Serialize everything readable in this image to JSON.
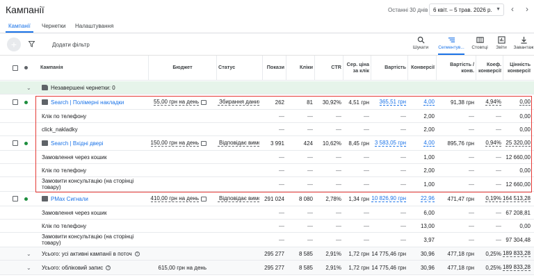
{
  "page_title": "Кампанії",
  "date_range": {
    "label": "Останні 30 днів",
    "value": "6 квіт. – 5 трав. 2026 р."
  },
  "tabs": [
    "Кампанії",
    "Чернетки",
    "Налаштування"
  ],
  "toolbar": {
    "add_filter": "Додати фільтр",
    "tools": [
      "Шукати",
      "Сегментув...",
      "Стовпці",
      "Звіти",
      "Завантаж"
    ]
  },
  "columns": {
    "campaign": "Кампанія",
    "budget": "Бюджет",
    "status": "Статус",
    "impressions": "Покази",
    "clicks": "Кліки",
    "ctr": "CTR",
    "avg_cpc": "Сер. ціна за клік",
    "cost": "Вартість",
    "conversions": "Конверсії",
    "cost_per_conv": "Вартість / конв.",
    "conv_rate": "Коеф. конверсії",
    "conv_value": "Цінність конверсії"
  },
  "drafts_label": "Незавершені чернетки: 0",
  "rows": [
    {
      "kind": "campaign",
      "name": "Search | Полімерні накладки",
      "budget": "55,00 грн на день",
      "status": "Збирання даних для",
      "impressions": "262",
      "clicks": "81",
      "ctr": "30,92%",
      "avg_cpc": "4,51 грн",
      "cost": "365,51 грн",
      "conversions": "4,00",
      "cost_per_conv": "91,38 грн",
      "conv_rate": "4,94%",
      "conv_value": "0,00"
    },
    {
      "kind": "sub",
      "name": "Клік по телефону",
      "impressions": "—",
      "clicks": "—",
      "ctr": "—",
      "avg_cpc": "—",
      "cost": "—",
      "conversions": "2,00",
      "cost_per_conv": "—",
      "conv_rate": "—",
      "conv_value": "0,00"
    },
    {
      "kind": "sub",
      "name": "click_nakladky",
      "impressions": "—",
      "clicks": "—",
      "ctr": "—",
      "avg_cpc": "—",
      "cost": "—",
      "conversions": "2,00",
      "cost_per_conv": "—",
      "conv_rate": "—",
      "conv_value": "0,00"
    },
    {
      "kind": "campaign",
      "name": "Search | Вхідні двері",
      "budget": "150,00 грн на день",
      "status": "Відповідає вимогам",
      "impressions": "3 991",
      "clicks": "424",
      "ctr": "10,62%",
      "avg_cpc": "8,45 грн",
      "cost": "3 583,05 грн",
      "conversions": "4,00",
      "cost_per_conv": "895,76 грн",
      "conv_rate": "0,94%",
      "conv_value": "25 320,00"
    },
    {
      "kind": "sub",
      "name": "Замовлення через кошик",
      "impressions": "—",
      "clicks": "—",
      "ctr": "—",
      "avg_cpc": "—",
      "cost": "—",
      "conversions": "1,00",
      "cost_per_conv": "—",
      "conv_rate": "—",
      "conv_value": "12 660,00"
    },
    {
      "kind": "sub",
      "name": "Клік по телефону",
      "impressions": "—",
      "clicks": "—",
      "ctr": "—",
      "avg_cpc": "—",
      "cost": "—",
      "conversions": "2,00",
      "cost_per_conv": "—",
      "conv_rate": "—",
      "conv_value": "0,00"
    },
    {
      "kind": "sub",
      "name": "Замовити консультацію (на сторінці товару)",
      "impressions": "—",
      "clicks": "—",
      "ctr": "—",
      "avg_cpc": "—",
      "cost": "—",
      "conversions": "1,00",
      "cost_per_conv": "—",
      "conv_rate": "—",
      "conv_value": "12 660,00"
    },
    {
      "kind": "campaign",
      "name": "PMax Сигнали",
      "budget": "410,00 грн на день",
      "status": "Відповідає вимогам",
      "impressions": "291 024",
      "clicks": "8 080",
      "ctr": "2,78%",
      "avg_cpc": "1,34 грн",
      "cost": "10 826,90 грн",
      "conversions": "22,96",
      "cost_per_conv": "471,47 грн",
      "conv_rate": "0,19%",
      "conv_value": "164 513,28"
    },
    {
      "kind": "sub",
      "name": "Замовлення через кошик",
      "impressions": "—",
      "clicks": "—",
      "ctr": "—",
      "avg_cpc": "—",
      "cost": "—",
      "conversions": "6,00",
      "cost_per_conv": "—",
      "conv_rate": "—",
      "conv_value": "67 208,81"
    },
    {
      "kind": "sub",
      "name": "Клік по телефону",
      "impressions": "—",
      "clicks": "—",
      "ctr": "—",
      "avg_cpc": "—",
      "cost": "—",
      "conversions": "13,00",
      "cost_per_conv": "—",
      "conv_rate": "—",
      "conv_value": "0,00"
    },
    {
      "kind": "sub",
      "name": "Замовити консультацію (на сторінці товару)",
      "impressions": "—",
      "clicks": "—",
      "ctr": "—",
      "avg_cpc": "—",
      "cost": "—",
      "conversions": "3,97",
      "cost_per_conv": "—",
      "conv_rate": "—",
      "conv_value": "97 304,48"
    },
    {
      "kind": "total",
      "name": "Усього: усі активні кампанії в поточ",
      "budget": "",
      "impressions": "295 277",
      "clicks": "8 585",
      "ctr": "2,91%",
      "avg_cpc": "1,72 грн",
      "cost": "14 775,46 грн",
      "conversions": "30,96",
      "cost_per_conv": "477,18 грн",
      "conv_rate": "0,25%",
      "conv_value": "189 833,28"
    },
    {
      "kind": "total",
      "name": "Усього: обліковий запис",
      "budget": "615,00 грн на день",
      "impressions": "295 277",
      "clicks": "8 585",
      "ctr": "2,91%",
      "avg_cpc": "1,72 грн",
      "cost": "14 775,46 грн",
      "conversions": "30,96",
      "cost_per_conv": "477,18 грн",
      "conv_rate": "0,25%",
      "conv_value": "189 833,28"
    }
  ]
}
